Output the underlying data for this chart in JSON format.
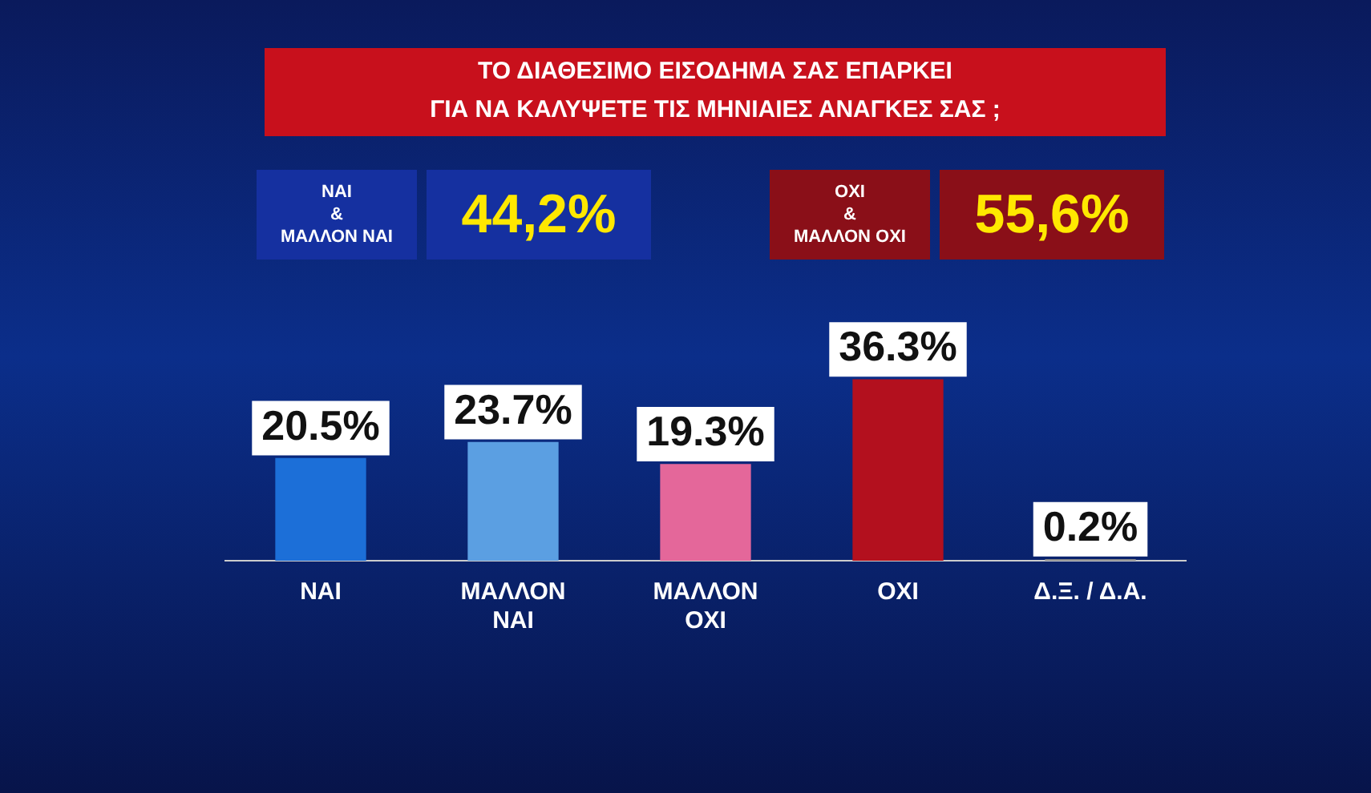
{
  "chart_data": {
    "type": "bar",
    "title": "ΤΟ ΔΙΑΘΕΣΙΜΟ ΕΙΣΟΔΗΜΑ ΣΑΣ ΕΠΑΡΚΕΙ\nΓΙΑ ΝΑ ΚΑΛΥΨΕΤΕ ΤΙΣ ΜΗΝΙΑΙΕΣ ΑΝΑΓΚΕΣ ΣΑΣ ;",
    "categories": [
      "ΝΑΙ",
      "ΜΑΛΛΟΝ\nΝΑΙ",
      "ΜΑΛΛΟΝ\nΟΧΙ",
      "ΟΧΙ",
      "Δ.Ξ. / Δ.Α."
    ],
    "values": [
      20.5,
      23.7,
      19.3,
      36.3,
      0.2
    ],
    "value_labels": [
      "20.5%",
      "23.7%",
      "19.3%",
      "36.3%",
      "0.2%"
    ],
    "colors": [
      "#1c6fd8",
      "#5b9fe2",
      "#e4679a",
      "#b3101e",
      "#8a8a8a"
    ],
    "annotations": [
      "ΝΑΙ\n&\nΜΑΛΛΟΝ ΝΑΙ",
      "44,2%",
      "ΟΧΙ\n&\nΜΑΛΛΟΝ ΟΧΙ",
      "55,6%"
    ],
    "legend": false,
    "grid": false
  }
}
